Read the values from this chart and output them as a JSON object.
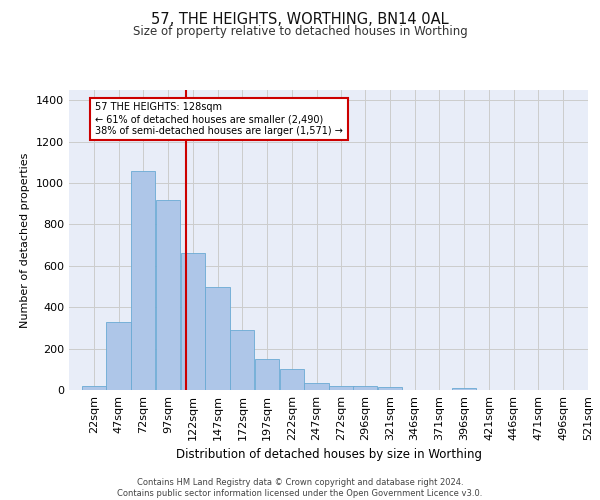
{
  "title": "57, THE HEIGHTS, WORTHING, BN14 0AL",
  "subtitle": "Size of property relative to detached houses in Worthing",
  "xlabel": "Distribution of detached houses by size in Worthing",
  "ylabel": "Number of detached properties",
  "bar_values": [
    20,
    330,
    1060,
    920,
    660,
    500,
    290,
    150,
    100,
    35,
    20,
    20,
    15,
    0,
    0,
    10,
    0,
    0,
    0,
    0
  ],
  "bar_labels": [
    "22sqm",
    "47sqm",
    "72sqm",
    "97sqm",
    "122sqm",
    "147sqm",
    "172sqm",
    "197sqm",
    "222sqm",
    "247sqm",
    "272sqm",
    "296sqm",
    "321sqm",
    "346sqm",
    "371sqm",
    "396sqm",
    "421sqm",
    "446sqm",
    "471sqm",
    "496sqm",
    "521sqm"
  ],
  "bar_color": "#aec6e8",
  "bar_edge_color": "#6aaad4",
  "vline_x": 128,
  "vline_color": "#cc0000",
  "annotation_text": "57 THE HEIGHTS: 128sqm\n← 61% of detached houses are smaller (2,490)\n38% of semi-detached houses are larger (1,571) →",
  "annotation_box_color": "#ffffff",
  "annotation_box_edge": "#cc0000",
  "ylim": [
    0,
    1450
  ],
  "yticks": [
    0,
    200,
    400,
    600,
    800,
    1000,
    1200,
    1400
  ],
  "grid_color": "#cccccc",
  "bg_color": "#e8edf8",
  "footer": "Contains HM Land Registry data © Crown copyright and database right 2024.\nContains public sector information licensed under the Open Government Licence v3.0.",
  "bin_starts": [
    22,
    47,
    72,
    97,
    122,
    147,
    172,
    197,
    222,
    247,
    272,
    296,
    321,
    346,
    371,
    396,
    421,
    446,
    471,
    496
  ],
  "bin_width": 25
}
